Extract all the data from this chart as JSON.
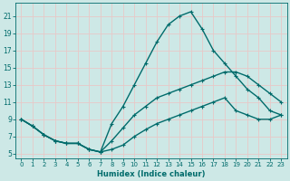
{
  "xlabel": "Humidex (Indice chaleur)",
  "ylabel": "",
  "xlim": [
    -0.5,
    23.5
  ],
  "ylim": [
    4.5,
    22.5
  ],
  "xticks": [
    0,
    1,
    2,
    3,
    4,
    5,
    6,
    7,
    8,
    9,
    10,
    11,
    12,
    13,
    14,
    15,
    16,
    17,
    18,
    19,
    20,
    21,
    22,
    23
  ],
  "yticks": [
    5,
    7,
    9,
    11,
    13,
    15,
    17,
    19,
    21
  ],
  "bg_color": "#cde8e6",
  "grid_color": "#e8c8c8",
  "line_color": "#006b6b",
  "line1_y": [
    9,
    8.2,
    7.2,
    6.5,
    6.2,
    6.2,
    5.5,
    5.2,
    8.5,
    10.5,
    13.0,
    15.5,
    18.0,
    20.0,
    21.0,
    21.5,
    19.5,
    17.0,
    15.5,
    14.0,
    12.5,
    11.5,
    10.0,
    9.5
  ],
  "line2_y": [
    9,
    8.2,
    7.2,
    6.5,
    6.2,
    6.2,
    5.5,
    5.2,
    6.5,
    8.0,
    9.5,
    10.5,
    11.5,
    12.0,
    12.5,
    13.0,
    13.5,
    14.0,
    14.5,
    14.5,
    14.0,
    13.0,
    12.0,
    11.0
  ],
  "line3_y": [
    9,
    8.2,
    7.2,
    6.5,
    6.2,
    6.2,
    5.5,
    5.2,
    5.5,
    6.0,
    7.0,
    7.8,
    8.5,
    9.0,
    9.5,
    10.0,
    10.5,
    11.0,
    11.5,
    10.0,
    9.5,
    9.0,
    9.0,
    9.5
  ],
  "x": [
    0,
    1,
    2,
    3,
    4,
    5,
    6,
    7,
    8,
    9,
    10,
    11,
    12,
    13,
    14,
    15,
    16,
    17,
    18,
    19,
    20,
    21,
    22,
    23
  ],
  "marker_style": "+",
  "marker_size": 3,
  "line_width": 1.0,
  "tick_fontsize": 5.0,
  "xlabel_fontsize": 6.0
}
